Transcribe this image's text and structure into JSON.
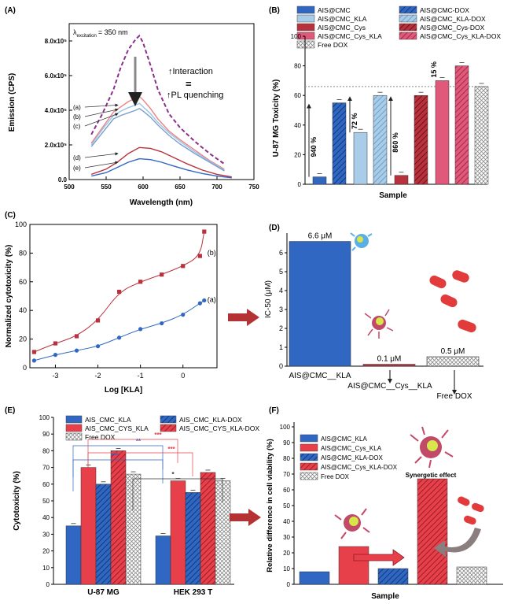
{
  "panels": {
    "A": "(A)",
    "B": "(B)",
    "C": "(C)",
    "D": "(D)",
    "E": "(E)",
    "F": "(F)"
  },
  "colors": {
    "blue": "#2f67c2",
    "lightblue": "#a9cde8",
    "darkred": "#b8323d",
    "pink": "#e0587a",
    "red": "#e8404b",
    "dashed_purple": "#8a2f8a",
    "grey": "#9a9a9a",
    "arrow_red": "#b53234"
  },
  "chart_data": [
    {
      "id": "A",
      "type": "line",
      "xlabel": "Wavelength (nm)",
      "ylabel": "Emission (CPS)",
      "xlim": [
        500,
        750
      ],
      "ylim": [
        0,
        900000
      ],
      "xticks": [
        "500",
        "550",
        "600",
        "650",
        "700",
        "750"
      ],
      "yticks": [
        "0.0",
        "2.0x10⁵",
        "4.0x10⁵",
        "6.0x10⁵",
        "8.0x10⁵"
      ],
      "excitation_label": "λ",
      "excitation_sub": "excitation",
      "excitation_value": "= 350 nm",
      "annotation_line1": "↑Interaction",
      "annotation_eq": "=",
      "annotation_line2": "↑PL quenching",
      "series": [
        {
          "label": "(a)",
          "color": "#f08080",
          "x": [
            530,
            545,
            560,
            570,
            580,
            590,
            595,
            600,
            610,
            620,
            635,
            650,
            670,
            690,
            710
          ],
          "y": [
            210000,
            300000,
            390000,
            420000,
            450000,
            470000,
            480000,
            460000,
            410000,
            350000,
            280000,
            230000,
            170000,
            110000,
            60000
          ]
        },
        {
          "label": "(b)",
          "color": "#9bc3e6",
          "x": [
            530,
            545,
            560,
            570,
            580,
            590,
            595,
            600,
            610,
            620,
            635,
            650,
            670,
            690,
            710
          ],
          "y": [
            200000,
            290000,
            370000,
            395000,
            415000,
            430000,
            440000,
            420000,
            380000,
            330000,
            270000,
            220000,
            160000,
            105000,
            55000
          ]
        },
        {
          "label": "(c)",
          "color": "#7aa0d0",
          "x": [
            530,
            545,
            560,
            570,
            580,
            590,
            595,
            600,
            610,
            620,
            635,
            650,
            670,
            690,
            710
          ],
          "y": [
            190000,
            270000,
            350000,
            370000,
            385000,
            400000,
            410000,
            395000,
            360000,
            315000,
            255000,
            205000,
            150000,
            100000,
            50000
          ]
        },
        {
          "label": "(d)",
          "color": "#b8323d",
          "x": [
            530,
            550,
            565,
            580,
            595,
            610,
            625,
            640,
            660,
            680,
            700,
            720
          ],
          "y": [
            30000,
            60000,
            100000,
            150000,
            185000,
            180000,
            160000,
            130000,
            90000,
            55000,
            30000,
            15000
          ]
        },
        {
          "label": "(e)",
          "color": "#2f67c2",
          "x": [
            530,
            550,
            565,
            580,
            595,
            610,
            625,
            640,
            660,
            680,
            700,
            720
          ],
          "y": [
            20000,
            40000,
            70000,
            100000,
            120000,
            115000,
            100000,
            80000,
            55000,
            35000,
            20000,
            10000
          ]
        },
        {
          "label": "",
          "color": "#8a2f8a",
          "dashed": true,
          "x": [
            530,
            545,
            560,
            570,
            580,
            590,
            595,
            600,
            610,
            620,
            635,
            650,
            670,
            690,
            710
          ],
          "y": [
            260000,
            380000,
            520000,
            650000,
            750000,
            810000,
            830000,
            790000,
            660000,
            520000,
            380000,
            300000,
            220000,
            150000,
            90000
          ]
        }
      ]
    },
    {
      "id": "B",
      "type": "bar",
      "xlabel": "Sample",
      "ylabel": "U-87 MG Toxicity (%)",
      "ylim": [
        0,
        100
      ],
      "yticks": [
        "0",
        "20",
        "40",
        "60",
        "80",
        "100"
      ],
      "legend": [
        {
          "name": "AIS@CMC",
          "color": "#2f67c2",
          "pattern": "solid"
        },
        {
          "name": "AIS@CMC-DOX",
          "color": "#2f67c2",
          "pattern": "hatch"
        },
        {
          "name": "AIS@CMC_KLA",
          "color": "#a9cde8",
          "pattern": "solid"
        },
        {
          "name": "AIS@CMC_KLA-DOX",
          "color": "#a9cde8",
          "pattern": "hatch"
        },
        {
          "name": "AIS@CMC_Cys",
          "color": "#b8323d",
          "pattern": "solid"
        },
        {
          "name": "AIS@CMC_Cys-DOX",
          "color": "#b8323d",
          "pattern": "hatch"
        },
        {
          "name": "AIS@CMC_Cys_KLA",
          "color": "#e0587a",
          "pattern": "solid"
        },
        {
          "name": "AIS@CMC_Cys_KLA-DOX",
          "color": "#e0587a",
          "pattern": "hatch"
        },
        {
          "name": "Free DOX",
          "color": "#ffffff",
          "pattern": "grid"
        }
      ],
      "values": [
        5,
        55,
        35,
        60,
        6,
        60,
        70,
        80,
        66
      ],
      "pct_labels": [
        "940 %",
        "72 %",
        "860 %",
        "15 %"
      ],
      "reference_line": 66
    },
    {
      "id": "C",
      "type": "scatter",
      "xlabel": "Log [KLA]",
      "ylabel": "Normalized cytotoxicity (%)",
      "xlim": [
        -3.6,
        0.8
      ],
      "ylim": [
        0,
        100
      ],
      "xticks": [
        "-3",
        "-2",
        "-1",
        "0"
      ],
      "yticks": [
        "0",
        "20",
        "40",
        "60",
        "80",
        "100"
      ],
      "series": [
        {
          "name": "(a)",
          "color": "#2f67c2",
          "x": [
            -3.5,
            -3.0,
            -2.5,
            -2.0,
            -1.5,
            -1.0,
            -0.5,
            0.0,
            0.4,
            0.5
          ],
          "y": [
            5,
            9,
            12,
            15,
            21,
            27,
            31,
            37,
            45,
            47
          ]
        },
        {
          "name": "(b)",
          "color": "#b8323d",
          "x": [
            -3.5,
            -3.0,
            -2.5,
            -2.0,
            -1.5,
            -1.0,
            -0.5,
            0.0,
            0.4,
            0.5
          ],
          "y": [
            11,
            17,
            22,
            33,
            53,
            60,
            65,
            71,
            78,
            95
          ]
        }
      ]
    },
    {
      "id": "D",
      "type": "bar",
      "ylabel": "IC-50 (μM)",
      "ylim": [
        0,
        7
      ],
      "yticks": [
        "0",
        "1",
        "2",
        "3",
        "4",
        "5",
        "6"
      ],
      "categories": [
        "AIS@CMC__KLA",
        "AIS@CMC__Cys__KLA",
        "Free DOX"
      ],
      "values": [
        6.6,
        0.1,
        0.5
      ],
      "value_labels": [
        "6.6 μM",
        "0.1 μM",
        "0.5 μM"
      ]
    },
    {
      "id": "E",
      "type": "bar",
      "ylabel": "Cytotoxicity (%)",
      "ylim": [
        0,
        100
      ],
      "yticks": [
        "0",
        "10",
        "20",
        "30",
        "40",
        "50",
        "60",
        "70",
        "80",
        "90",
        "100"
      ],
      "categories": [
        "U-87 MG",
        "HEK 293 T"
      ],
      "legend": [
        {
          "name": "AIS_CMC_KLA",
          "color": "#2f67c2",
          "pattern": "solid"
        },
        {
          "name": "AIS_CMC_KLA-DOX",
          "color": "#2f67c2",
          "pattern": "hatch"
        },
        {
          "name": "AIS_CMC_CYS_KLA",
          "color": "#e8404b",
          "pattern": "solid"
        },
        {
          "name": "AIS_CMC_CYS_KLA-DOX",
          "color": "#e8404b",
          "pattern": "hatch"
        },
        {
          "name": "Free DOX",
          "color": "#ffffff",
          "pattern": "grid"
        }
      ],
      "series": [
        {
          "name": "AIS_CMC_KLA",
          "values": [
            35,
            29
          ]
        },
        {
          "name": "AIS_CMC_CYS_KLA",
          "values": [
            70,
            62
          ]
        },
        {
          "name": "AIS_CMC_KLA-DOX",
          "values": [
            60,
            55
          ]
        },
        {
          "name": "AIS_CMC_CYS_KLA-DOX",
          "values": [
            80,
            67
          ]
        },
        {
          "name": "Free DOX",
          "values": [
            66,
            62
          ]
        }
      ],
      "significance": [
        "**",
        "***",
        "***",
        "***",
        "*"
      ]
    },
    {
      "id": "F",
      "type": "bar",
      "xlabel": "Sample",
      "ylabel": "Relative difference in cell viability (%)",
      "ylim": [
        0,
        100
      ],
      "yticks": [
        "0",
        "10",
        "20",
        "30",
        "40",
        "50",
        "60",
        "70",
        "80",
        "90",
        "100"
      ],
      "legend": [
        {
          "name": "AIS@CMC_KLA",
          "color": "#2f67c2",
          "pattern": "solid"
        },
        {
          "name": "AIS@CMC_Cys_KLA",
          "color": "#e8404b",
          "pattern": "solid"
        },
        {
          "name": "AIS@CMC_KLA-DOX",
          "color": "#2f67c2",
          "pattern": "hatch"
        },
        {
          "name": "AIS@CMC_Cys_KLA-DOX",
          "color": "#e8404b",
          "pattern": "hatch"
        },
        {
          "name": "Free DOX",
          "color": "#ffffff",
          "pattern": "grid"
        }
      ],
      "values": [
        8,
        24,
        10,
        67,
        11
      ],
      "annotation": "Synergetic effect"
    }
  ]
}
